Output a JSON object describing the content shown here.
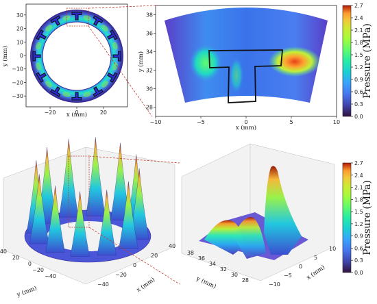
{
  "chart_data": [
    {
      "type": "heatmap",
      "panel": "top-left full ring contour",
      "xlabel": "x (mm)",
      "ylabel": "y (mm)",
      "xticks": [
        "−20",
        "0",
        "20"
      ],
      "yticks": [
        "30",
        "20",
        "10",
        "0",
        "−10",
        "−20",
        "−30"
      ],
      "xlim": [
        -38,
        38
      ],
      "ylim": [
        -38,
        38
      ],
      "ring": {
        "inner_radius": 27,
        "outer_radius": 38,
        "t_seals": 12
      },
      "colormap": "turbo"
    },
    {
      "type": "heatmap",
      "panel": "top-right zoomed contour around one T seal",
      "xlabel": "x (mm)",
      "ylabel": "y (mm)",
      "xticks": [
        "−10",
        "−5",
        "0",
        "5",
        "10"
      ],
      "yticks": [
        "38",
        "36",
        "34",
        "32",
        "30",
        "28"
      ],
      "xlim": [
        -10,
        10
      ],
      "ylim": [
        27,
        39
      ],
      "peak": {
        "x": 5.5,
        "y": 32.5,
        "value": 2.7
      },
      "colorbar": {
        "label": "Pressure  (MPa)",
        "ticks": [
          "0.0",
          "0.3",
          "0.6",
          "0.9",
          "1.2",
          "1.5",
          "1.8",
          "2.1",
          "2.4",
          "2.7"
        ],
        "range": [
          0,
          2.7
        ]
      }
    },
    {
      "type": "area",
      "panel": "bottom-left 3D surface of full ring",
      "xlabel": "x (mm)",
      "ylabel": "y (mm)",
      "xticks": [
        "−40",
        "−20",
        "0",
        "20",
        "40"
      ],
      "yticks": [
        "40",
        "20",
        "0",
        "−20",
        "−40"
      ],
      "peaks": 12,
      "zmax": 2.7
    },
    {
      "type": "area",
      "panel": "bottom-right 3D surface zoom",
      "xlabel": "x (mm)",
      "ylabel": "y (mm)",
      "xticks": [
        "−10",
        "−5",
        "0",
        "5",
        "10"
      ],
      "yticks": [
        "38",
        "36",
        "34",
        "32",
        "30",
        "28"
      ],
      "zmax": 2.7,
      "colorbar": {
        "label": "Pressure  (MPa)",
        "ticks": [
          "0.0",
          "0.3",
          "0.6",
          "0.9",
          "1.2",
          "1.5",
          "1.8",
          "2.1",
          "2.4",
          "2.7"
        ],
        "range": [
          0,
          2.7
        ]
      }
    }
  ]
}
